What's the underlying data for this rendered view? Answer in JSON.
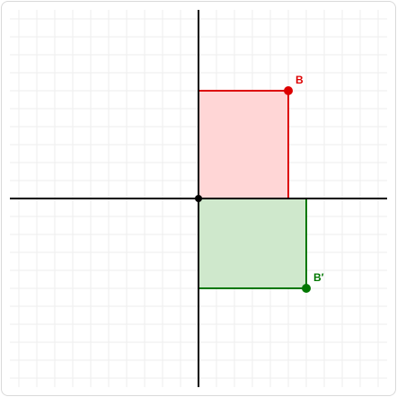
{
  "chart_data": {
    "type": "coordinate-transformation",
    "grid": true,
    "axes": {
      "x_range": [
        -10,
        10
      ],
      "y_range": [
        -10,
        10
      ],
      "tick_labels": false
    },
    "origin": {
      "x": 0,
      "y": 0
    },
    "original": {
      "label": "B",
      "rectangle": [
        [
          0,
          0
        ],
        [
          5,
          0
        ],
        [
          5,
          6
        ],
        [
          0,
          6
        ]
      ],
      "vertex": {
        "x": 5,
        "y": 6
      },
      "stroke": "#dd0000",
      "fill": "#ffd6d6"
    },
    "image": {
      "label": "B′",
      "rectangle": [
        [
          0,
          0
        ],
        [
          6,
          0
        ],
        [
          6,
          -5
        ],
        [
          0,
          -5
        ]
      ],
      "vertex": {
        "x": 6,
        "y": -5
      },
      "stroke": "#007700",
      "fill": "#cfe8cc"
    }
  }
}
